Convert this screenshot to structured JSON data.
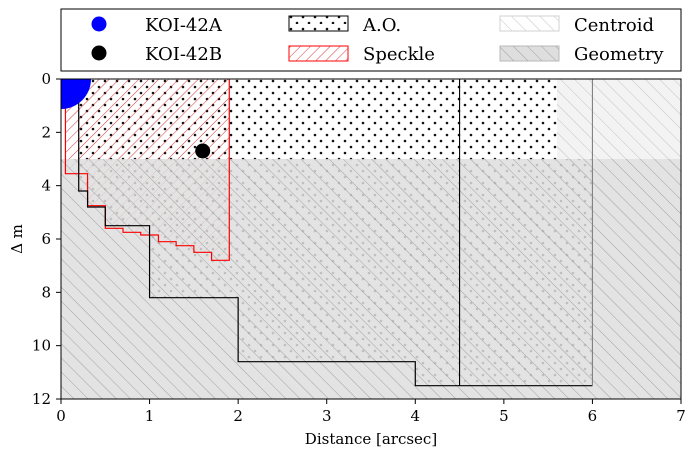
{
  "chart_data": {
    "type": "scatter",
    "title": "",
    "xlabel": "Distance [arcsec]",
    "ylabel": "Δ m",
    "xlim": [
      0,
      7
    ],
    "ylim": [
      12,
      0
    ],
    "x_ticks": [
      0,
      1,
      2,
      3,
      4,
      5,
      6,
      7
    ],
    "y_ticks": [
      0,
      2,
      4,
      6,
      8,
      10,
      12
    ],
    "x_tick_labels": [
      "0",
      "1",
      "2",
      "3",
      "4",
      "5",
      "6",
      "7"
    ],
    "y_tick_labels": [
      "0",
      "2",
      "4",
      "6",
      "8",
      "10",
      "12"
    ],
    "legend": {
      "placement": "top",
      "entries": [
        {
          "label": "KOI-42A",
          "kind": "marker",
          "color": "#0000ff"
        },
        {
          "label": "A.O.",
          "kind": "patch",
          "hatch": "dots",
          "edge": "#000000"
        },
        {
          "label": "Centroid",
          "kind": "patch",
          "hatch": "diag-light",
          "edge": "#c8c8c8"
        },
        {
          "label": "KOI-42B",
          "kind": "marker",
          "color": "#000000"
        },
        {
          "label": "Speckle",
          "kind": "patch",
          "hatch": "diag-red",
          "edge": "#ff0000"
        },
        {
          "label": "Geometry",
          "kind": "patch",
          "hatch": "diag-gray",
          "edge": "#b0b0b0"
        }
      ]
    },
    "points": [
      {
        "name": "KOI-42A",
        "x": 0.0,
        "y": 0.0,
        "color": "#0000ff"
      },
      {
        "name": "KOI-42B",
        "x": 1.6,
        "y": 2.7,
        "color": "#000000"
      }
    ],
    "regions": {
      "ao_step_x": [
        0.0,
        0.2,
        0.2,
        0.3,
        0.3,
        0.5,
        0.5,
        1.0,
        1.0,
        2.0,
        2.0,
        4.0,
        4.0,
        6.0
      ],
      "ao_step_y": [
        0.0,
        0.0,
        4.2,
        4.2,
        4.8,
        4.8,
        5.5,
        5.5,
        8.2,
        8.2,
        10.6,
        10.6,
        11.5,
        11.5
      ],
      "ao_verticals_x": [
        4.5,
        6.0
      ],
      "speckle_step_x": [
        0.05,
        0.05,
        0.3,
        0.3,
        0.5,
        0.5,
        0.7,
        0.7,
        0.9,
        0.9,
        1.1,
        1.1,
        1.3,
        1.3,
        1.5,
        1.5,
        1.7,
        1.7,
        1.9,
        1.9
      ],
      "speckle_step_y": [
        0.0,
        3.55,
        3.55,
        4.75,
        4.75,
        5.6,
        5.6,
        5.75,
        5.75,
        5.85,
        5.85,
        6.1,
        6.1,
        6.25,
        6.25,
        6.5,
        6.5,
        6.8,
        6.8,
        0.0
      ],
      "centroid_x_start": 5.6,
      "centroid_dm_max": 3.0,
      "geometry_dm_min": 3.0
    }
  }
}
